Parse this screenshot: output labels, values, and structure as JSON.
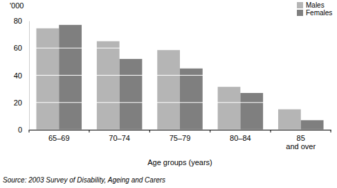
{
  "chart_data": {
    "type": "bar",
    "y_label": "'000",
    "x_label": "Age groups (years)",
    "source": "Source: 2003 Survey of Disability, Ageing and Carers",
    "categories": [
      "65–69",
      "70–74",
      "75–79",
      "80–84",
      "85 and over"
    ],
    "series": [
      {
        "name": "Males",
        "color": "#b5b5b5",
        "values": [
          74.5,
          65,
          58.5,
          31.5,
          15
        ]
      },
      {
        "name": "Females",
        "color": "#7f7f7f",
        "values": [
          77,
          52,
          45,
          27,
          7
        ]
      }
    ],
    "ylim": [
      0,
      80
    ],
    "yticks": [
      0,
      20,
      40,
      60,
      80
    ],
    "grid": true,
    "legend": "top-right"
  }
}
